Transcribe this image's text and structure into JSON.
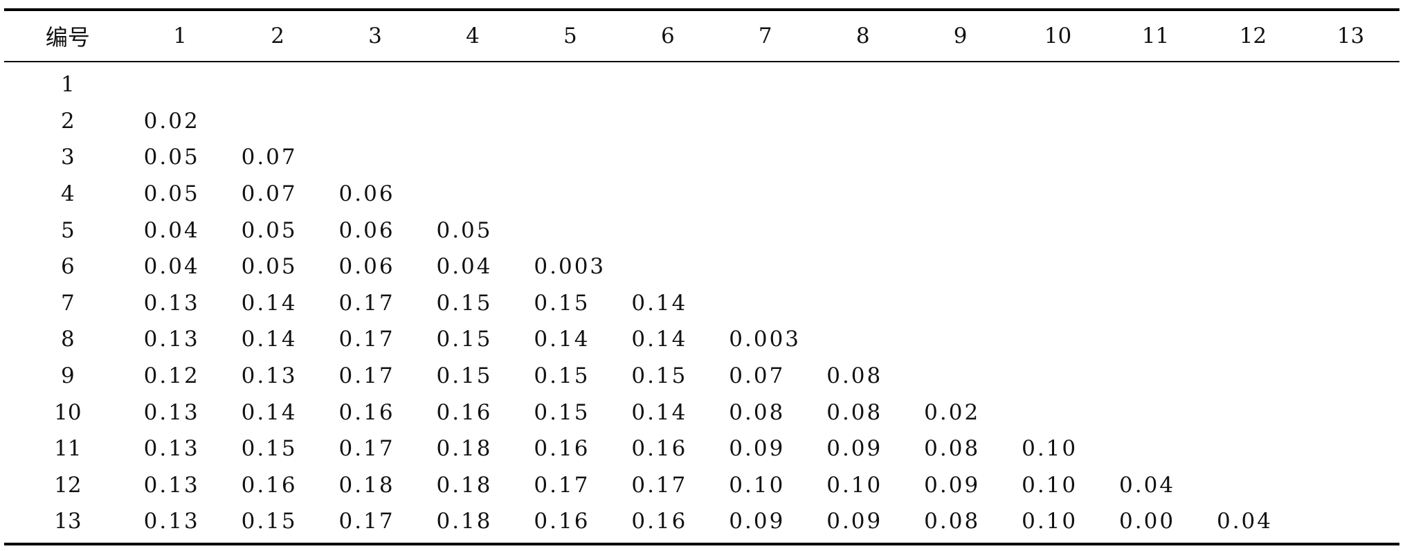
{
  "table": {
    "header": [
      "编号",
      "1",
      "2",
      "3",
      "4",
      "5",
      "6",
      "7",
      "8",
      "9",
      "10",
      "11",
      "12",
      "13"
    ],
    "rows": [
      {
        "id": "1",
        "values": []
      },
      {
        "id": "2",
        "values": [
          "0.02"
        ]
      },
      {
        "id": "3",
        "values": [
          "0.05",
          "0.07"
        ]
      },
      {
        "id": "4",
        "values": [
          "0.05",
          "0.07",
          "0.06"
        ]
      },
      {
        "id": "5",
        "values": [
          "0.04",
          "0.05",
          "0.06",
          "0.05"
        ]
      },
      {
        "id": "6",
        "values": [
          "0.04",
          "0.05",
          "0.06",
          "0.04",
          "0.003"
        ]
      },
      {
        "id": "7",
        "values": [
          "0.13",
          "0.14",
          "0.17",
          "0.15",
          "0.15",
          "0.14"
        ]
      },
      {
        "id": "8",
        "values": [
          "0.13",
          "0.14",
          "0.17",
          "0.15",
          "0.14",
          "0.14",
          "0.003"
        ]
      },
      {
        "id": "9",
        "values": [
          "0.12",
          "0.13",
          "0.17",
          "0.15",
          "0.15",
          "0.15",
          "0.07",
          "0.08"
        ]
      },
      {
        "id": "10",
        "values": [
          "0.13",
          "0.14",
          "0.16",
          "0.16",
          "0.15",
          "0.14",
          "0.08",
          "0.08",
          "0.02"
        ]
      },
      {
        "id": "11",
        "values": [
          "0.13",
          "0.15",
          "0.17",
          "0.18",
          "0.16",
          "0.16",
          "0.09",
          "0.09",
          "0.08",
          "0.10"
        ]
      },
      {
        "id": "12",
        "values": [
          "0.13",
          "0.16",
          "0.18",
          "0.18",
          "0.17",
          "0.17",
          "0.10",
          "0.10",
          "0.09",
          "0.10",
          "0.04"
        ]
      },
      {
        "id": "13",
        "values": [
          "0.13",
          "0.15",
          "0.17",
          "0.18",
          "0.16",
          "0.16",
          "0.09",
          "0.09",
          "0.08",
          "0.10",
          "0.00",
          "0.04"
        ]
      }
    ]
  }
}
